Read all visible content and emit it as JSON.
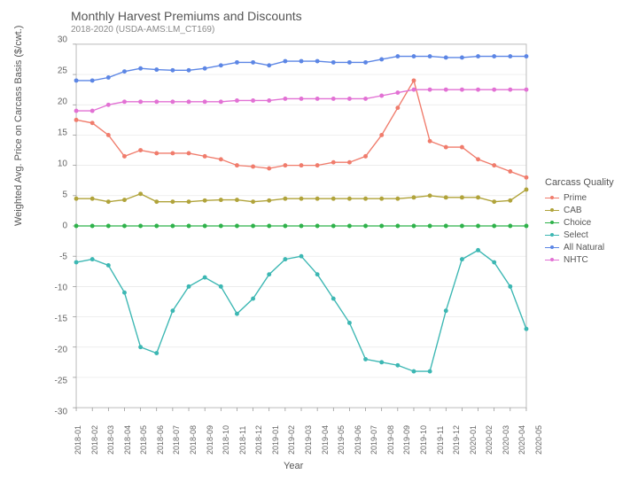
{
  "chart": {
    "type": "line",
    "title": "Monthly Harvest Premiums and Discounts",
    "subtitle": "2018-2020 (USDA-AMS:LM_CT169)",
    "xlabel": "Year",
    "ylabel": "Weighted Avg. Price on Carcass Basis ($/cwt.)",
    "title_fontsize": 14,
    "subtitle_fontsize": 10,
    "label_fontsize": 11,
    "tick_fontsize": 10,
    "background_color": "#ffffff",
    "grid_color": "#e6e6e6",
    "axis_color": "#666666",
    "xlim_count": 29,
    "ylim": [
      -30,
      30
    ],
    "ytick_step": 5,
    "marker_size": 2.5,
    "line_width": 1.4,
    "x_categories": [
      "2018-01",
      "2018-02",
      "2018-03",
      "2018-04",
      "2018-05",
      "2018-06",
      "2018-07",
      "2018-08",
      "2018-09",
      "2018-10",
      "2018-11",
      "2018-12",
      "2019-01",
      "2019-02",
      "2019-03",
      "2019-04",
      "2019-05",
      "2019-06",
      "2019-07",
      "2019-08",
      "2019-09",
      "2019-10",
      "2019-11",
      "2019-12",
      "2020-01",
      "2020-02",
      "2020-03",
      "2020-04",
      "2020-05"
    ],
    "legend": {
      "title": "Carcass Quality",
      "position": "right"
    },
    "series": [
      {
        "name": "Prime",
        "color": "#f07c6c",
        "values": [
          17.5,
          17.0,
          15.0,
          11.5,
          12.5,
          12.0,
          12.0,
          12.0,
          11.5,
          11.0,
          10.0,
          9.8,
          9.5,
          10.0,
          10.0,
          10.0,
          10.5,
          10.5,
          11.5,
          15.0,
          19.5,
          24.0,
          14.0,
          13.0,
          13.0,
          11.0,
          10.0,
          9.0,
          8.0
        ]
      },
      {
        "name": "CAB",
        "color": "#b0a33a",
        "values": [
          4.5,
          4.5,
          4.0,
          4.3,
          5.3,
          4.0,
          4.0,
          4.0,
          4.2,
          4.3,
          4.3,
          4.0,
          4.2,
          4.5,
          4.5,
          4.5,
          4.5,
          4.5,
          4.5,
          4.5,
          4.5,
          4.7,
          5.0,
          4.7,
          4.7,
          4.7,
          4.0,
          4.2,
          6.0
        ]
      },
      {
        "name": "Choice",
        "color": "#2fb24b",
        "values": [
          0,
          0,
          0,
          0,
          0,
          0,
          0,
          0,
          0,
          0,
          0,
          0,
          0,
          0,
          0,
          0,
          0,
          0,
          0,
          0,
          0,
          0,
          0,
          0,
          0,
          0,
          0,
          0,
          0
        ]
      },
      {
        "name": "Select",
        "color": "#3cb7b3",
        "values": [
          -6,
          -5.5,
          -6.5,
          -11,
          -20,
          -21,
          -14,
          -10,
          -8.5,
          -10,
          -14.5,
          -12,
          -8,
          -5.5,
          -5,
          -8,
          -12,
          -16,
          -22,
          -22.5,
          -23,
          -24,
          -24,
          -14,
          -5.5,
          -4,
          -6,
          -10,
          -17
        ]
      },
      {
        "name": "All Natural",
        "color": "#5c86e5",
        "values": [
          24,
          24,
          24.5,
          25.5,
          26,
          25.8,
          25.7,
          25.7,
          26,
          26.5,
          27,
          27,
          26.5,
          27.2,
          27.2,
          27.2,
          27,
          27,
          27,
          27.5,
          28,
          28,
          28,
          27.8,
          27.8,
          28,
          28,
          28,
          28
        ]
      },
      {
        "name": "NHTC",
        "color": "#e271d4",
        "values": [
          19,
          19,
          20,
          20.5,
          20.5,
          20.5,
          20.5,
          20.5,
          20.5,
          20.5,
          20.7,
          20.7,
          20.7,
          21,
          21,
          21,
          21,
          21,
          21,
          21.5,
          22,
          22.5,
          22.5,
          22.5,
          22.5,
          22.5,
          22.5,
          22.5,
          22.5
        ]
      }
    ]
  }
}
